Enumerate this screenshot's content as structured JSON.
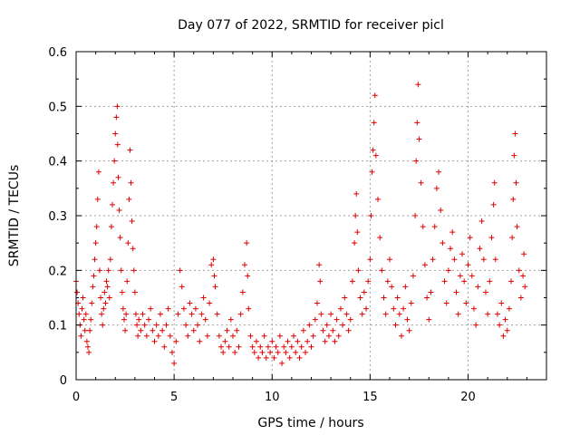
{
  "chart_data": {
    "type": "scatter",
    "title": "Day 077 of 2022, SRMTID for receiver picl",
    "xlabel": "GPS time / hours",
    "ylabel": "SRMTID / TECUs",
    "xlim": [
      0,
      24
    ],
    "ylim": [
      0,
      0.6
    ],
    "xticks": [
      0,
      5,
      10,
      15,
      20
    ],
    "yticks": [
      0,
      0.1,
      0.2,
      0.3,
      0.4,
      0.5,
      0.6
    ],
    "xtick_labels": [
      "0",
      "5",
      "10",
      "15",
      "20"
    ],
    "ytick_labels": [
      "0",
      "0.1",
      "0.2",
      "0.3",
      "0.4",
      "0.5",
      "0.6"
    ],
    "grid": true,
    "marker": "+",
    "color": "#e00000",
    "series": [
      {
        "name": "SRMTID",
        "points": [
          [
            0.0,
            0.18
          ],
          [
            0.05,
            0.16
          ],
          [
            0.1,
            0.14
          ],
          [
            0.15,
            0.12
          ],
          [
            0.2,
            0.1
          ],
          [
            0.25,
            0.08
          ],
          [
            0.3,
            0.13
          ],
          [
            0.35,
            0.15
          ],
          [
            0.4,
            0.11
          ],
          [
            0.45,
            0.09
          ],
          [
            0.5,
            0.12
          ],
          [
            0.55,
            0.07
          ],
          [
            0.6,
            0.06
          ],
          [
            0.65,
            0.05
          ],
          [
            0.7,
            0.09
          ],
          [
            0.75,
            0.11
          ],
          [
            0.8,
            0.14
          ],
          [
            0.85,
            0.17
          ],
          [
            0.9,
            0.19
          ],
          [
            0.95,
            0.22
          ],
          [
            1.0,
            0.25
          ],
          [
            1.05,
            0.28
          ],
          [
            1.1,
            0.33
          ],
          [
            1.15,
            0.38
          ],
          [
            1.2,
            0.2
          ],
          [
            1.25,
            0.15
          ],
          [
            1.3,
            0.12
          ],
          [
            1.35,
            0.1
          ],
          [
            1.4,
            0.13
          ],
          [
            1.45,
            0.16
          ],
          [
            1.5,
            0.14
          ],
          [
            1.55,
            0.18
          ],
          [
            1.6,
            0.17
          ],
          [
            1.65,
            0.2
          ],
          [
            1.7,
            0.15
          ],
          [
            1.75,
            0.22
          ],
          [
            1.8,
            0.28
          ],
          [
            1.85,
            0.32
          ],
          [
            1.9,
            0.36
          ],
          [
            1.95,
            0.4
          ],
          [
            2.0,
            0.45
          ],
          [
            2.05,
            0.48
          ],
          [
            2.1,
            0.5
          ],
          [
            2.12,
            0.43
          ],
          [
            2.15,
            0.37
          ],
          [
            2.2,
            0.31
          ],
          [
            2.25,
            0.26
          ],
          [
            2.3,
            0.2
          ],
          [
            2.35,
            0.16
          ],
          [
            2.4,
            0.13
          ],
          [
            2.45,
            0.11
          ],
          [
            2.5,
            0.09
          ],
          [
            2.55,
            0.12
          ],
          [
            2.6,
            0.18
          ],
          [
            2.65,
            0.25
          ],
          [
            2.7,
            0.33
          ],
          [
            2.75,
            0.42
          ],
          [
            2.8,
            0.36
          ],
          [
            2.85,
            0.29
          ],
          [
            2.9,
            0.24
          ],
          [
            2.95,
            0.2
          ],
          [
            3.0,
            0.16
          ],
          [
            3.05,
            0.12
          ],
          [
            3.1,
            0.1
          ],
          [
            3.15,
            0.08
          ],
          [
            3.2,
            0.11
          ],
          [
            3.3,
            0.09
          ],
          [
            3.4,
            0.12
          ],
          [
            3.5,
            0.1
          ],
          [
            3.6,
            0.08
          ],
          [
            3.7,
            0.11
          ],
          [
            3.8,
            0.13
          ],
          [
            3.9,
            0.09
          ],
          [
            4.0,
            0.07
          ],
          [
            4.1,
            0.1
          ],
          [
            4.2,
            0.08
          ],
          [
            4.3,
            0.12
          ],
          [
            4.4,
            0.09
          ],
          [
            4.5,
            0.06
          ],
          [
            4.6,
            0.1
          ],
          [
            4.7,
            0.13
          ],
          [
            4.8,
            0.08
          ],
          [
            4.9,
            0.05
          ],
          [
            5.0,
            0.03
          ],
          [
            5.1,
            0.07
          ],
          [
            5.2,
            0.12
          ],
          [
            5.3,
            0.2
          ],
          [
            5.4,
            0.17
          ],
          [
            5.5,
            0.13
          ],
          [
            5.6,
            0.1
          ],
          [
            5.7,
            0.08
          ],
          [
            5.8,
            0.14
          ],
          [
            5.9,
            0.12
          ],
          [
            6.0,
            0.09
          ],
          [
            6.1,
            0.13
          ],
          [
            6.2,
            0.1
          ],
          [
            6.3,
            0.07
          ],
          [
            6.4,
            0.12
          ],
          [
            6.5,
            0.15
          ],
          [
            6.6,
            0.11
          ],
          [
            6.7,
            0.08
          ],
          [
            6.8,
            0.14
          ],
          [
            6.9,
            0.21
          ],
          [
            7.0,
            0.22
          ],
          [
            7.05,
            0.19
          ],
          [
            7.1,
            0.17
          ],
          [
            7.2,
            0.12
          ],
          [
            7.3,
            0.08
          ],
          [
            7.4,
            0.06
          ],
          [
            7.5,
            0.05
          ],
          [
            7.6,
            0.07
          ],
          [
            7.7,
            0.09
          ],
          [
            7.8,
            0.06
          ],
          [
            7.9,
            0.11
          ],
          [
            8.0,
            0.08
          ],
          [
            8.1,
            0.05
          ],
          [
            8.2,
            0.09
          ],
          [
            8.3,
            0.06
          ],
          [
            8.4,
            0.12
          ],
          [
            8.5,
            0.16
          ],
          [
            8.6,
            0.21
          ],
          [
            8.7,
            0.25
          ],
          [
            8.75,
            0.19
          ],
          [
            8.8,
            0.13
          ],
          [
            8.9,
            0.08
          ],
          [
            9.0,
            0.06
          ],
          [
            9.1,
            0.05
          ],
          [
            9.2,
            0.07
          ],
          [
            9.3,
            0.04
          ],
          [
            9.4,
            0.06
          ],
          [
            9.5,
            0.05
          ],
          [
            9.6,
            0.08
          ],
          [
            9.7,
            0.04
          ],
          [
            9.8,
            0.06
          ],
          [
            9.9,
            0.05
          ],
          [
            10.0,
            0.07
          ],
          [
            10.1,
            0.04
          ],
          [
            10.2,
            0.06
          ],
          [
            10.3,
            0.05
          ],
          [
            10.4,
            0.08
          ],
          [
            10.5,
            0.03
          ],
          [
            10.6,
            0.06
          ],
          [
            10.7,
            0.05
          ],
          [
            10.8,
            0.07
          ],
          [
            10.9,
            0.04
          ],
          [
            11.0,
            0.06
          ],
          [
            11.1,
            0.08
          ],
          [
            11.2,
            0.05
          ],
          [
            11.3,
            0.07
          ],
          [
            11.4,
            0.04
          ],
          [
            11.5,
            0.06
          ],
          [
            11.6,
            0.09
          ],
          [
            11.7,
            0.05
          ],
          [
            11.8,
            0.07
          ],
          [
            11.9,
            0.1
          ],
          [
            12.0,
            0.06
          ],
          [
            12.1,
            0.08
          ],
          [
            12.2,
            0.11
          ],
          [
            12.3,
            0.14
          ],
          [
            12.4,
            0.21
          ],
          [
            12.45,
            0.18
          ],
          [
            12.5,
            0.12
          ],
          [
            12.6,
            0.09
          ],
          [
            12.7,
            0.07
          ],
          [
            12.8,
            0.1
          ],
          [
            12.9,
            0.08
          ],
          [
            13.0,
            0.12
          ],
          [
            13.1,
            0.09
          ],
          [
            13.2,
            0.07
          ],
          [
            13.3,
            0.11
          ],
          [
            13.4,
            0.08
          ],
          [
            13.5,
            0.13
          ],
          [
            13.6,
            0.1
          ],
          [
            13.7,
            0.15
          ],
          [
            13.8,
            0.12
          ],
          [
            13.9,
            0.09
          ],
          [
            14.0,
            0.11
          ],
          [
            14.1,
            0.18
          ],
          [
            14.2,
            0.25
          ],
          [
            14.25,
            0.3
          ],
          [
            14.3,
            0.34
          ],
          [
            14.35,
            0.27
          ],
          [
            14.4,
            0.2
          ],
          [
            14.5,
            0.15
          ],
          [
            14.6,
            0.12
          ],
          [
            14.7,
            0.16
          ],
          [
            14.8,
            0.13
          ],
          [
            14.9,
            0.18
          ],
          [
            15.0,
            0.22
          ],
          [
            15.05,
            0.3
          ],
          [
            15.1,
            0.38
          ],
          [
            15.15,
            0.42
          ],
          [
            15.2,
            0.47
          ],
          [
            15.25,
            0.52
          ],
          [
            15.3,
            0.41
          ],
          [
            15.4,
            0.33
          ],
          [
            15.5,
            0.26
          ],
          [
            15.6,
            0.2
          ],
          [
            15.7,
            0.15
          ],
          [
            15.8,
            0.12
          ],
          [
            15.9,
            0.18
          ],
          [
            16.0,
            0.22
          ],
          [
            16.1,
            0.17
          ],
          [
            16.2,
            0.13
          ],
          [
            16.3,
            0.1
          ],
          [
            16.4,
            0.15
          ],
          [
            16.5,
            0.12
          ],
          [
            16.6,
            0.08
          ],
          [
            16.7,
            0.13
          ],
          [
            16.8,
            0.17
          ],
          [
            16.9,
            0.11
          ],
          [
            17.0,
            0.09
          ],
          [
            17.1,
            0.14
          ],
          [
            17.2,
            0.19
          ],
          [
            17.3,
            0.3
          ],
          [
            17.35,
            0.4
          ],
          [
            17.4,
            0.47
          ],
          [
            17.45,
            0.54
          ],
          [
            17.5,
            0.44
          ],
          [
            17.6,
            0.36
          ],
          [
            17.7,
            0.28
          ],
          [
            17.8,
            0.21
          ],
          [
            17.9,
            0.15
          ],
          [
            18.0,
            0.11
          ],
          [
            18.1,
            0.16
          ],
          [
            18.2,
            0.22
          ],
          [
            18.3,
            0.28
          ],
          [
            18.4,
            0.35
          ],
          [
            18.5,
            0.38
          ],
          [
            18.6,
            0.31
          ],
          [
            18.7,
            0.25
          ],
          [
            18.8,
            0.18
          ],
          [
            18.9,
            0.14
          ],
          [
            19.0,
            0.2
          ],
          [
            19.1,
            0.24
          ],
          [
            19.2,
            0.27
          ],
          [
            19.3,
            0.22
          ],
          [
            19.4,
            0.16
          ],
          [
            19.5,
            0.12
          ],
          [
            19.6,
            0.19
          ],
          [
            19.7,
            0.23
          ],
          [
            19.8,
            0.18
          ],
          [
            19.9,
            0.14
          ],
          [
            20.0,
            0.21
          ],
          [
            20.1,
            0.26
          ],
          [
            20.2,
            0.19
          ],
          [
            20.3,
            0.13
          ],
          [
            20.4,
            0.1
          ],
          [
            20.5,
            0.17
          ],
          [
            20.6,
            0.24
          ],
          [
            20.7,
            0.29
          ],
          [
            20.8,
            0.22
          ],
          [
            20.9,
            0.16
          ],
          [
            21.0,
            0.12
          ],
          [
            21.1,
            0.18
          ],
          [
            21.2,
            0.26
          ],
          [
            21.3,
            0.32
          ],
          [
            21.35,
            0.36
          ],
          [
            21.4,
            0.22
          ],
          [
            21.5,
            0.12
          ],
          [
            21.6,
            0.1
          ],
          [
            21.7,
            0.14
          ],
          [
            21.8,
            0.08
          ],
          [
            21.9,
            0.11
          ],
          [
            22.0,
            0.09
          ],
          [
            22.1,
            0.13
          ],
          [
            22.2,
            0.18
          ],
          [
            22.25,
            0.26
          ],
          [
            22.3,
            0.33
          ],
          [
            22.35,
            0.41
          ],
          [
            22.4,
            0.45
          ],
          [
            22.45,
            0.36
          ],
          [
            22.5,
            0.28
          ],
          [
            22.6,
            0.2
          ],
          [
            22.7,
            0.15
          ],
          [
            22.8,
            0.19
          ],
          [
            22.85,
            0.23
          ],
          [
            22.9,
            0.17
          ]
        ]
      }
    ]
  }
}
